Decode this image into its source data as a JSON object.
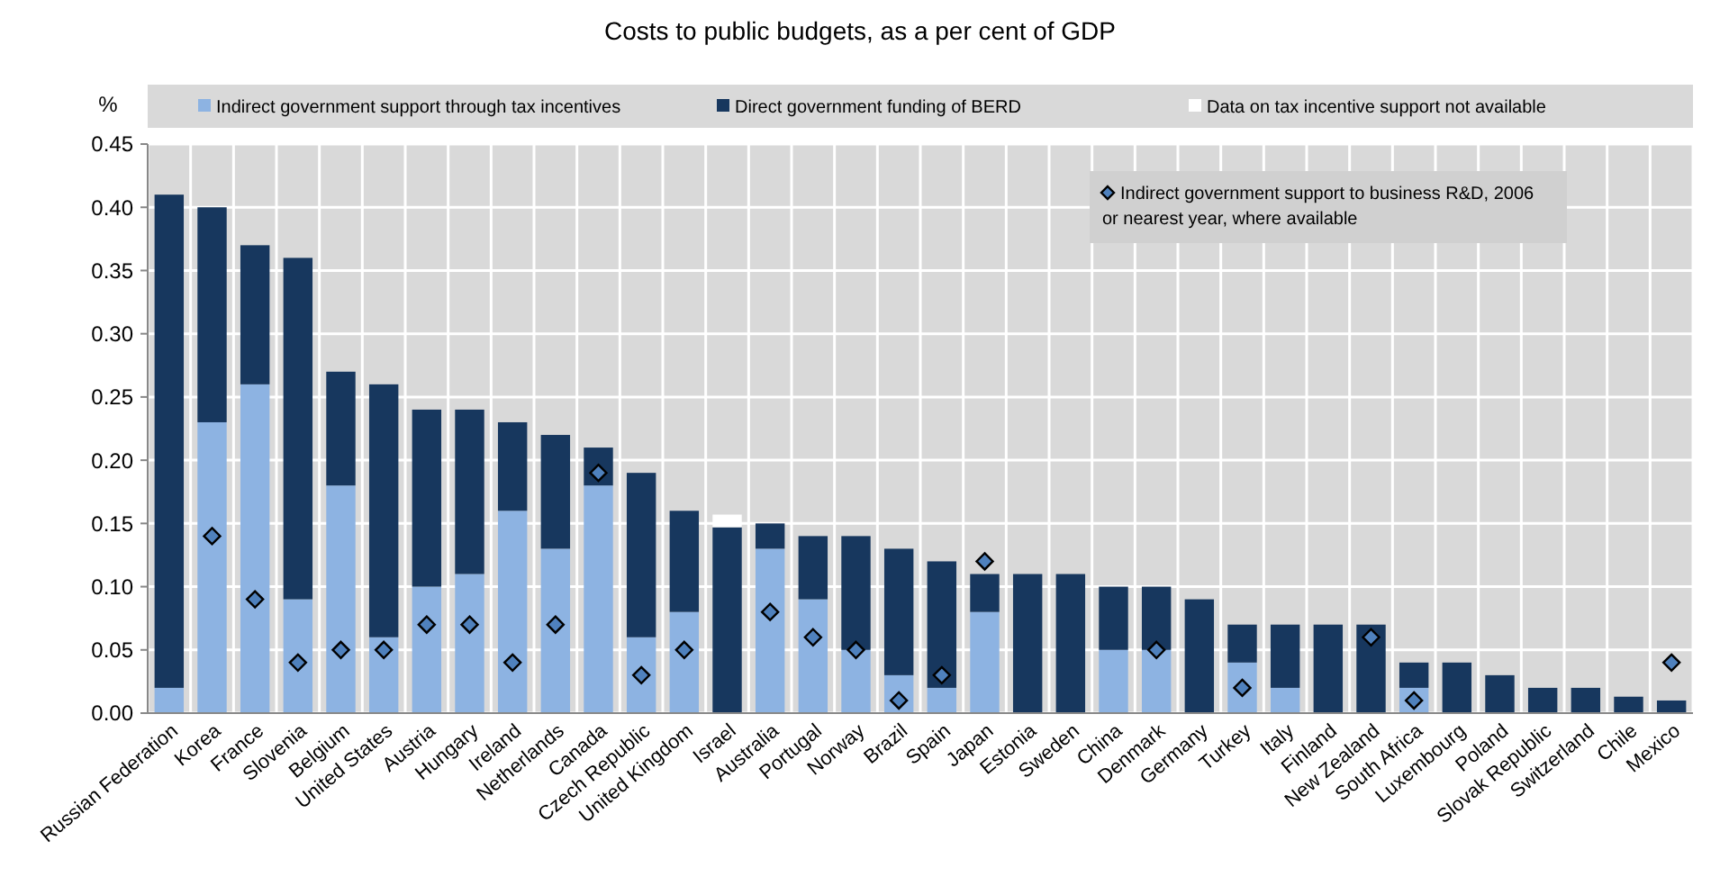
{
  "chart_data": {
    "type": "bar",
    "stacked": true,
    "title": "Costs to public budgets, as a per cent of GDP",
    "ylabel": "%",
    "categories": [
      "Russian Federation",
      "Korea",
      "France",
      "Slovenia",
      "Belgium",
      "United States",
      "Austria",
      "Hungary",
      "Ireland",
      "Netherlands",
      "Canada",
      "Czech Republic",
      "United Kingdom",
      "Israel",
      "Australia",
      "Portugal",
      "Norway",
      "Brazil",
      "Spain",
      "Japan",
      "Estonia",
      "Sweden",
      "China",
      "Denmark",
      "Germany",
      "Turkey",
      "Italy",
      "Finland",
      "New Zealand",
      "South Africa",
      "Luxembourg",
      "Poland",
      "Slovak Republic",
      "Switzerland",
      "Chile",
      "Mexico"
    ],
    "series": [
      {
        "name": "Indirect government support through tax incentives",
        "color": "#8db3e2",
        "values": [
          0.02,
          0.23,
          0.26,
          0.09,
          0.18,
          0.06,
          0.1,
          0.11,
          0.16,
          0.13,
          0.18,
          0.06,
          0.08,
          null,
          0.13,
          0.09,
          0.05,
          0.03,
          0.02,
          0.08,
          null,
          null,
          0.05,
          0.05,
          null,
          0.04,
          0.02,
          null,
          null,
          0.02,
          null,
          null,
          null,
          null,
          null,
          null
        ]
      },
      {
        "name": "Direct government funding of BERD",
        "color": "#17375e",
        "values": [
          0.39,
          0.17,
          0.11,
          0.27,
          0.09,
          0.2,
          0.14,
          0.13,
          0.07,
          0.09,
          0.03,
          0.13,
          0.08,
          0.147,
          0.02,
          0.05,
          0.09,
          0.1,
          0.1,
          0.03,
          0.11,
          0.11,
          0.05,
          0.05,
          0.09,
          0.03,
          0.05,
          0.07,
          0.07,
          0.02,
          0.04,
          0.03,
          0.02,
          0.02,
          0.013,
          0.01
        ]
      },
      {
        "name": "Data on tax incentive support not available",
        "color": "#ffffff",
        "values": [
          null,
          null,
          null,
          null,
          null,
          null,
          null,
          null,
          null,
          null,
          null,
          null,
          null,
          0.01,
          null,
          null,
          null,
          null,
          null,
          null,
          null,
          null,
          null,
          null,
          null,
          null,
          null,
          null,
          null,
          null,
          null,
          null,
          null,
          null,
          null,
          null
        ]
      },
      {
        "type": "scatter",
        "marker": "diamond",
        "name": "Indirect government support to business R&D, 2006 or nearest year, where available",
        "color": "#4f81bd",
        "values": [
          null,
          0.14,
          0.09,
          0.04,
          0.05,
          0.05,
          0.07,
          0.07,
          0.04,
          0.07,
          0.19,
          0.03,
          0.05,
          null,
          0.08,
          0.06,
          0.05,
          0.01,
          0.03,
          0.12,
          null,
          null,
          null,
          0.05,
          null,
          0.02,
          null,
          null,
          0.06,
          0.01,
          null,
          null,
          null,
          null,
          null,
          0.04
        ]
      }
    ],
    "ylim": [
      0,
      0.45
    ],
    "yticks": [
      {
        "value": 0,
        "label": "0.00"
      },
      {
        "value": 0.05,
        "label": "0.05"
      },
      {
        "value": 0.1,
        "label": "0.10"
      },
      {
        "value": 0.15,
        "label": "0.15"
      },
      {
        "value": 0.2,
        "label": "0.20"
      },
      {
        "value": 0.25,
        "label": "0.25"
      },
      {
        "value": 0.3,
        "label": "0.30"
      },
      {
        "value": 0.35,
        "label": "0.35"
      },
      {
        "value": 0.4,
        "label": "0.40"
      },
      {
        "value": 0.45,
        "label": "0.45"
      }
    ],
    "grid": true,
    "legend": "top"
  }
}
